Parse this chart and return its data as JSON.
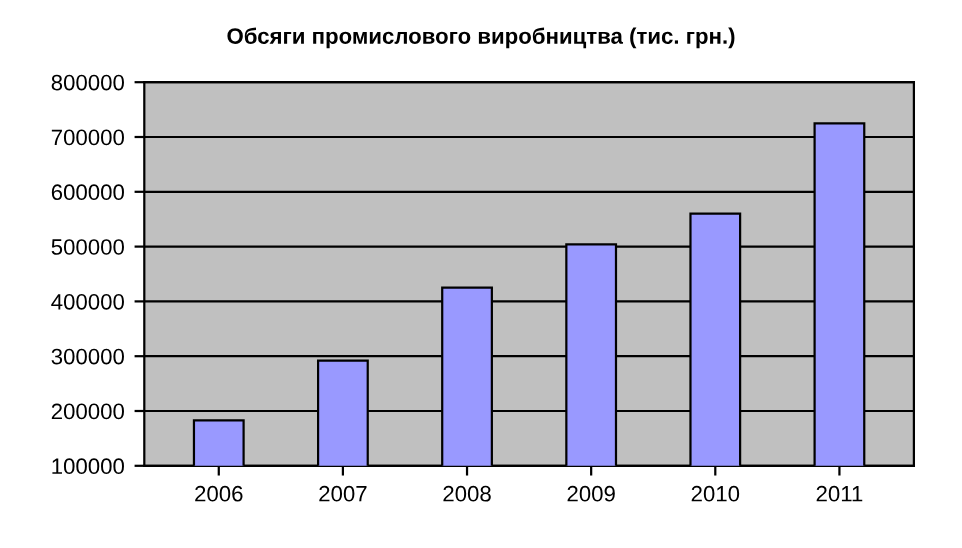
{
  "chart_data": {
    "type": "bar",
    "title": "Обсяги промислового виробництва (тис. грн.)",
    "categories": [
      "2006",
      "2007",
      "2008",
      "2009",
      "2010",
      "2011"
    ],
    "values": [
      183000,
      292000,
      425000,
      504000,
      560000,
      725000
    ],
    "color": "#9999ff",
    "ylim": [
      100000,
      800000
    ],
    "yticks": [
      100000,
      200000,
      300000,
      400000,
      500000,
      600000,
      700000,
      800000
    ],
    "grid": "y",
    "legend": false
  }
}
